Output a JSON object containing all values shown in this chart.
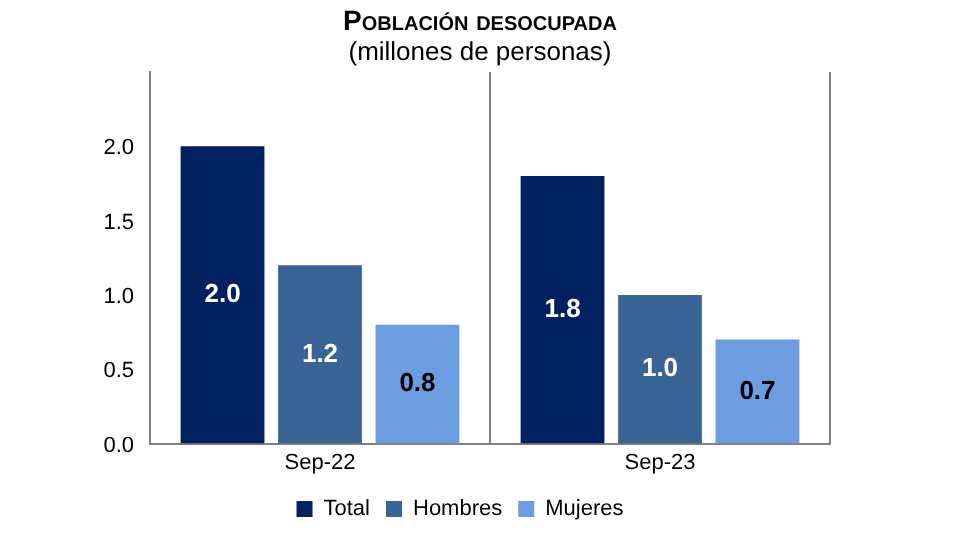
{
  "chart_data": {
    "type": "bar",
    "title": "Población desocupada",
    "subtitle": "(millones de personas)",
    "categories": [
      "Sep-22",
      "Sep-23"
    ],
    "series": [
      {
        "name": "Total",
        "color": "#002060",
        "values": [
          2.0,
          1.8
        ],
        "value_labels": [
          "2.0",
          "1.8"
        ]
      },
      {
        "name": "Hombres",
        "color": "#3b6496",
        "values": [
          1.2,
          1.0
        ],
        "value_labels": [
          "1.2",
          "1.0"
        ]
      },
      {
        "name": "Mujeres",
        "color": "#6b9de0",
        "values": [
          0.8,
          0.7
        ],
        "value_labels": [
          "0.8",
          "0.7"
        ]
      }
    ],
    "ylim": [
      0,
      2.5
    ],
    "yticks": [
      {
        "value": 0,
        "label": "0.0"
      },
      {
        "value": 0.5,
        "label": "0.5"
      },
      {
        "value": 1,
        "label": "1.0"
      },
      {
        "value": 1.5,
        "label": "1.5"
      },
      {
        "value": 2,
        "label": "2.0"
      }
    ],
    "grid": "x",
    "legend": "bottom"
  }
}
